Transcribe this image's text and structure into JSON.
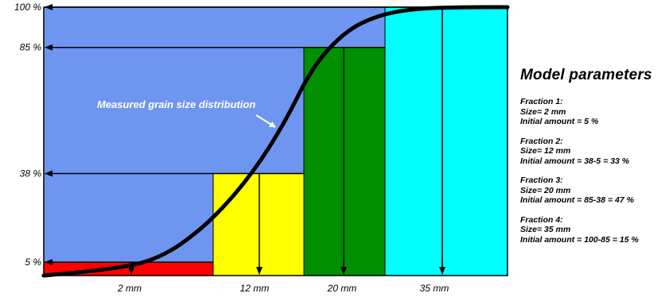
{
  "chart_data": {
    "type": "bar",
    "title": "",
    "xlabel": "",
    "ylabel": "",
    "ylim": [
      0,
      100
    ],
    "categories": [
      "2 mm",
      "12 mm",
      "20 mm",
      "35 mm"
    ],
    "values": [
      5,
      38,
      85,
      100
    ],
    "y_ticks": [
      "5 %",
      "38 %",
      "85 %",
      "100 %"
    ],
    "y_tick_values": [
      5,
      38,
      85,
      100
    ],
    "bar_colors": [
      "#ff0000",
      "#ffff00",
      "#008f00",
      "#00ffff"
    ],
    "background_color": "#6e96f0",
    "curve_label": "Measured grain size distribution",
    "curve": {
      "x": [
        0,
        0.1,
        0.2,
        0.25,
        0.3,
        0.37,
        0.45,
        0.52,
        0.58,
        0.65,
        0.72,
        0.8,
        0.9,
        1.0
      ],
      "y": [
        0,
        1.5,
        4,
        7,
        12,
        22,
        38,
        57,
        78,
        91,
        97,
        99.5,
        100,
        100
      ]
    }
  },
  "panel": {
    "title": "Model parameters",
    "fractions": [
      {
        "name": "Fraction 1:",
        "size": "Size= 2 mm",
        "amount": "Initial amount = 5 %"
      },
      {
        "name": "Fraction 2:",
        "size": "Size= 12 mm",
        "amount": "Initial amount = 38-5 = 33 %"
      },
      {
        "name": "Fraction 3:",
        "size": "Size= 20 mm",
        "amount": "Initial amount = 85-38 = 47 %"
      },
      {
        "name": "Fraction 4:",
        "size": "Size= 35 mm",
        "amount": "Initial amount = 100-85 = 15 %"
      }
    ]
  }
}
